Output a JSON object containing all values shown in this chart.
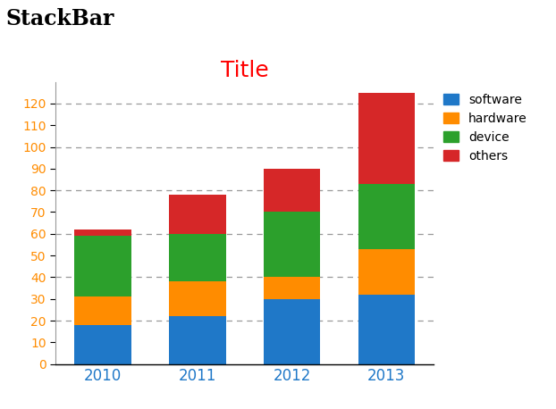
{
  "title": "Title",
  "page_title": "StackBar",
  "years": [
    "2010",
    "2011",
    "2012",
    "2013"
  ],
  "categories": [
    "software",
    "hardware",
    "device",
    "others"
  ],
  "colors": [
    "#1f78c8",
    "#ff8c00",
    "#2ca02c",
    "#d62728"
  ],
  "values": {
    "software": [
      18,
      22,
      30,
      32
    ],
    "hardware": [
      13,
      16,
      10,
      21
    ],
    "device": [
      28,
      22,
      30,
      30
    ],
    "others": [
      3,
      18,
      20,
      42
    ]
  },
  "ylim": [
    0,
    130
  ],
  "yticks": [
    0,
    10,
    20,
    30,
    40,
    50,
    60,
    70,
    80,
    90,
    100,
    110,
    120
  ],
  "grid_ticks": [
    20,
    40,
    60,
    80,
    100,
    120
  ],
  "bar_width": 0.6,
  "background_color": "#ffffff",
  "title_color": "#ff0000",
  "title_fontsize": 18,
  "page_title_fontsize": 17,
  "page_title_fontweight": "bold",
  "tick_label_color": "#ff8c00",
  "xlabel_color": "#1f78c8",
  "legend_fontsize": 10
}
